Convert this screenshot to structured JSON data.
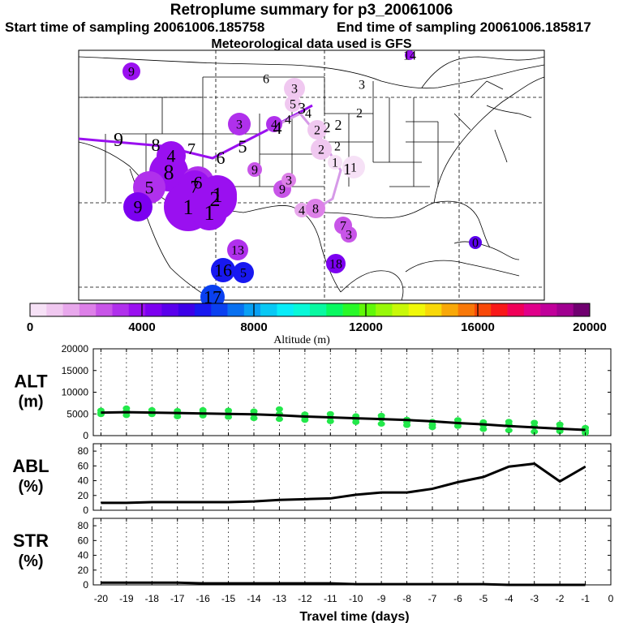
{
  "header": {
    "title": "Retroplume summary for p3_20061006",
    "start_sampling": "Start time of sampling 20061006.185758",
    "end_sampling": "End time of sampling 20061006.185817",
    "met_data": "Meteorological data used is GFS"
  },
  "colorbar": {
    "label": "Altitude (m)",
    "ticks": [
      "0",
      "4000",
      "8000",
      "12000",
      "16000",
      "20000"
    ],
    "colors": [
      "#f6e1f6",
      "#f0c8f0",
      "#e8a8ec",
      "#dd80e8",
      "#c855e8",
      "#b030ec",
      "#9a10f0",
      "#7c00f0",
      "#5a00ec",
      "#3c00e8",
      "#1818f0",
      "#0a40f0",
      "#0870f0",
      "#08a0f4",
      "#08c8f4",
      "#08ecf8",
      "#08f8d8",
      "#08f8a0",
      "#08f860",
      "#28f828",
      "#60f808",
      "#98f808",
      "#c8f808",
      "#f0f808",
      "#f8d808",
      "#f8a808",
      "#f87808",
      "#f84808",
      "#f81818",
      "#f00058",
      "#e0008a",
      "#c0009a",
      "#a00090",
      "#700070"
    ]
  },
  "map_points": [
    {
      "label": "9",
      "alt": 3800
    },
    {
      "label": "6",
      "alt": 3000
    },
    {
      "label": "3",
      "alt": 900
    },
    {
      "label": "3",
      "alt": 600
    },
    {
      "label": "5",
      "alt": 900
    },
    {
      "label": "4",
      "alt": 500
    },
    {
      "label": "2",
      "alt": 400
    },
    {
      "label": "2",
      "alt": 800
    },
    {
      "label": "2",
      "alt": 700
    },
    {
      "label": "1",
      "alt": 500
    },
    {
      "label": "1",
      "alt": 400
    },
    {
      "label": "3",
      "alt": 3300
    },
    {
      "label": "4",
      "alt": 3100
    },
    {
      "label": "4",
      "alt": 3600
    },
    {
      "label": "8",
      "alt": 3700
    },
    {
      "label": "6",
      "alt": 3200
    },
    {
      "label": "5",
      "alt": 3500
    },
    {
      "label": "7",
      "alt": 3600
    },
    {
      "label": "1",
      "alt": 4000
    },
    {
      "label": "1",
      "alt": 3900
    },
    {
      "label": "1",
      "alt": 4100
    },
    {
      "label": "2",
      "alt": 3800
    },
    {
      "label": "9",
      "alt": 4600
    },
    {
      "label": "9",
      "alt": 2500
    },
    {
      "label": "3",
      "alt": 2000
    },
    {
      "label": "4",
      "alt": 1600
    },
    {
      "label": "8",
      "alt": 1800
    },
    {
      "label": "7",
      "alt": 2900
    },
    {
      "label": "3",
      "alt": 2700
    },
    {
      "label": "13",
      "alt": 3500
    },
    {
      "label": "16",
      "alt": 5900
    },
    {
      "label": "5",
      "alt": 6300
    },
    {
      "label": "17",
      "alt": 7000
    },
    {
      "label": "18",
      "alt": 4500
    },
    {
      "label": "0",
      "alt": 5000
    },
    {
      "label": "14",
      "alt": 3900
    },
    {
      "label": "9",
      "alt": 2600
    },
    {
      "label": "2",
      "alt": 300
    }
  ],
  "map_text": [
    {
      "label": "9",
      "alt": 0
    },
    {
      "label": "8",
      "alt": 0
    },
    {
      "label": "7",
      "alt": 0
    },
    {
      "label": "6",
      "alt": 0
    },
    {
      "label": "5",
      "alt": 0
    },
    {
      "label": "4",
      "alt": 0
    },
    {
      "label": "3",
      "alt": 0
    },
    {
      "label": "4",
      "alt": 0
    },
    {
      "label": "3",
      "alt": 0
    },
    {
      "label": "2",
      "alt": 0
    },
    {
      "label": "2",
      "alt": 0
    },
    {
      "label": "1",
      "alt": 0
    },
    {
      "label": "4",
      "alt": 0
    },
    {
      "label": "6",
      "alt": 0
    }
  ],
  "chart_data": [
    {
      "type": "line+scatter",
      "panel": "ALT",
      "ylabel": "ALT\n(m)",
      "ylabel_lines": [
        "ALT",
        "(m)"
      ],
      "ylim": [
        0,
        20000
      ],
      "yticks": [
        0,
        5000,
        10000,
        15000,
        20000
      ],
      "x": [
        -20,
        -19,
        -18,
        -17,
        -16,
        -15,
        -14,
        -13,
        -12,
        -11,
        -10,
        -9,
        -8,
        -7,
        -6,
        -5,
        -4,
        -3,
        -2,
        -1
      ],
      "values": [
        5300,
        5400,
        5300,
        5200,
        5100,
        5000,
        4900,
        4700,
        4400,
        4200,
        4000,
        3800,
        3600,
        3300,
        2900,
        2600,
        2200,
        1900,
        1600,
        1300
      ],
      "scatter_points": [
        [
          -20,
          5800
        ],
        [
          -20,
          5200
        ],
        [
          -20,
          4900
        ],
        [
          -19,
          6300
        ],
        [
          -19,
          5600
        ],
        [
          -19,
          4700
        ],
        [
          -18,
          5900
        ],
        [
          -18,
          5300
        ],
        [
          -18,
          4900
        ],
        [
          -17,
          5700
        ],
        [
          -17,
          5100
        ],
        [
          -17,
          4400
        ],
        [
          -16,
          5900
        ],
        [
          -16,
          5300
        ],
        [
          -16,
          4600
        ],
        [
          -15,
          5800
        ],
        [
          -15,
          5000
        ],
        [
          -15,
          4300
        ],
        [
          -14,
          5600
        ],
        [
          -14,
          4900
        ],
        [
          -14,
          4000
        ],
        [
          -13,
          6100
        ],
        [
          -13,
          5000
        ],
        [
          -13,
          3800
        ],
        [
          -12,
          4900
        ],
        [
          -12,
          4200
        ],
        [
          -12,
          3600
        ],
        [
          -11,
          5000
        ],
        [
          -11,
          4200
        ],
        [
          -11,
          3300
        ],
        [
          -10,
          4500
        ],
        [
          -10,
          3800
        ],
        [
          -10,
          3100
        ],
        [
          -9,
          4600
        ],
        [
          -9,
          3900
        ],
        [
          -9,
          2700
        ],
        [
          -8,
          3700
        ],
        [
          -8,
          3100
        ],
        [
          -8,
          2400
        ],
        [
          -7,
          3200
        ],
        [
          -7,
          2500
        ],
        [
          -7,
          1900
        ],
        [
          -6,
          3600
        ],
        [
          -6,
          2900
        ],
        [
          -6,
          2200
        ],
        [
          -5,
          3100
        ],
        [
          -5,
          2400
        ],
        [
          -5,
          1500
        ],
        [
          -4,
          3200
        ],
        [
          -4,
          2500
        ],
        [
          -4,
          1200
        ],
        [
          -3,
          3000
        ],
        [
          -3,
          2100
        ],
        [
          -3,
          900
        ],
        [
          -2,
          2600
        ],
        [
          -2,
          1800
        ],
        [
          -2,
          1000
        ],
        [
          -1,
          1800
        ],
        [
          -1,
          1100
        ],
        [
          -1,
          600
        ]
      ]
    },
    {
      "type": "line",
      "panel": "ABL",
      "ylabel": "ABL\n(%)",
      "ylabel_lines": [
        "ABL",
        "(%)"
      ],
      "ylim": [
        0,
        90
      ],
      "yticks": [
        0,
        20,
        40,
        60,
        80
      ],
      "x": [
        -20,
        -19,
        -18,
        -17,
        -16,
        -15,
        -14,
        -13,
        -12,
        -11,
        -10,
        -9,
        -8,
        -7,
        -6,
        -5,
        -4,
        -3,
        -2,
        -1
      ],
      "values": [
        10,
        10,
        11,
        11,
        11,
        11,
        12,
        14,
        15,
        16,
        21,
        24,
        24,
        29,
        38,
        45,
        59,
        63,
        39,
        59
      ]
    },
    {
      "type": "line",
      "panel": "STR",
      "ylabel": "STR\n(%)",
      "ylabel_lines": [
        "STR",
        "(%)"
      ],
      "ylim": [
        0,
        90
      ],
      "yticks": [
        0,
        20,
        40,
        60,
        80
      ],
      "x": [
        -20,
        -19,
        -18,
        -17,
        -16,
        -15,
        -14,
        -13,
        -12,
        -11,
        -10,
        -9,
        -8,
        -7,
        -6,
        -5,
        -4,
        -3,
        -2,
        -1
      ],
      "values": [
        3,
        3,
        3,
        3,
        2,
        2,
        2,
        2,
        2,
        2,
        1,
        1,
        1,
        1,
        1,
        1,
        0,
        0,
        0,
        0
      ]
    }
  ],
  "xaxis": {
    "label": "Travel time (days)",
    "ticks": [
      "-20",
      "-19",
      "-18",
      "-17",
      "-16",
      "-15",
      "-14",
      "-13",
      "-12",
      "-11",
      "-10",
      "-9",
      "-8",
      "-7",
      "-6",
      "-5",
      "-4",
      "-3",
      "-2",
      "-1",
      "0"
    ],
    "xlim": [
      -20.3,
      0
    ]
  }
}
